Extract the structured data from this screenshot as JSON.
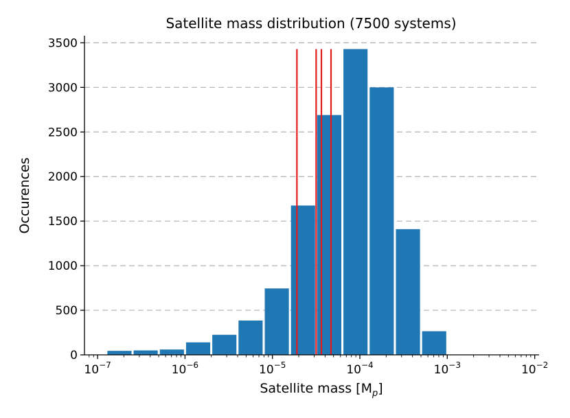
{
  "chart_data": {
    "type": "bar",
    "title": "Satellite mass distribution (7500 systems)",
    "xlabel": "Satellite mass [M",
    "xlabel_sub": "p",
    "xlabel_close": "]",
    "ylabel": "Occurences",
    "xscale": "log",
    "xlim_log10": [
      -7.15,
      -1.95
    ],
    "ylim": [
      0,
      3580
    ],
    "grid": "y-dashed",
    "x_ticks": [
      {
        "base": "10",
        "exp": "−7",
        "log10": -7
      },
      {
        "base": "10",
        "exp": "−6",
        "log10": -6
      },
      {
        "base": "10",
        "exp": "−5",
        "log10": -5
      },
      {
        "base": "10",
        "exp": "−4",
        "log10": -4
      },
      {
        "base": "10",
        "exp": "−3",
        "log10": -3
      },
      {
        "base": "10",
        "exp": "−2",
        "log10": -2
      }
    ],
    "y_ticks": [
      0,
      500,
      1000,
      1500,
      2000,
      2500,
      3000,
      3500
    ],
    "y_tick_labels": [
      "0",
      "500",
      "1000",
      "1500",
      "2000",
      "2500",
      "3000",
      "3500"
    ],
    "bins_log10": [
      [
        -6.9,
        -6.6
      ],
      [
        -6.6,
        -6.3
      ],
      [
        -6.3,
        -6.0
      ],
      [
        -6.0,
        -5.7
      ],
      [
        -5.7,
        -5.4
      ],
      [
        -5.4,
        -5.1
      ],
      [
        -5.1,
        -4.8
      ],
      [
        -4.8,
        -4.5
      ],
      [
        -4.5,
        -4.2
      ],
      [
        -4.2,
        -3.9
      ],
      [
        -3.9,
        -3.6
      ],
      [
        -3.6,
        -3.3
      ],
      [
        -3.3,
        -3.0
      ],
      [
        -3.0,
        -2.7
      ],
      [
        -2.7,
        -2.4
      ]
    ],
    "values": [
      45,
      50,
      60,
      140,
      225,
      385,
      745,
      1675,
      2690,
      3430,
      3000,
      1410,
      265,
      0,
      0
    ],
    "reference_lines_log10": [
      -4.72,
      -4.5,
      -4.44,
      -4.33
    ],
    "reference_line_top": 3430,
    "colors": {
      "bar": "#1f77b4",
      "reference": "#e3191c",
      "grid": "#b0b0b0"
    }
  }
}
